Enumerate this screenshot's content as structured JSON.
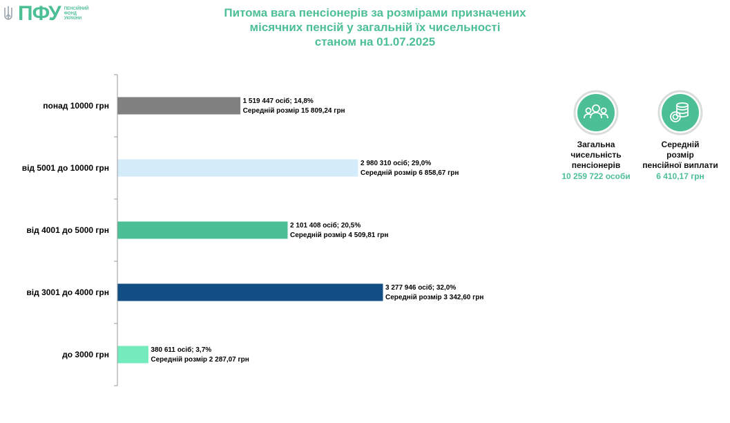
{
  "logo": {
    "letters": "ПФУ",
    "line1": "ПЕНСІЙНИЙ",
    "line2": "ФОНД",
    "line3": "УКРАЇНИ"
  },
  "colors": {
    "accent": "#4dbf95"
  },
  "chart_data": {
    "type": "bar",
    "orientation": "horizontal",
    "title": "Питома вага пенсіонерів за розмірами призначених місячних пенсій у загальній їх чисельності станом на 01.07.2025",
    "title_lines": [
      "Питома вага пенсіонерів за розмірами призначених",
      "місячних пенсій у загальній їх чисельності",
      "станом на 01.07.2025"
    ],
    "categories": [
      "понад 10000 грн",
      "від 5001 до 10000 грн",
      "від 4001 до 5000 грн",
      "від 3001 до 4000 грн",
      "до 3000 грн"
    ],
    "values": [
      14.8,
      29.0,
      20.5,
      32.0,
      3.7
    ],
    "counts": [
      "1 519 447",
      "2 980 310",
      "2 101 408",
      "3 277 946",
      "380 611"
    ],
    "averages": [
      "15 809,24",
      "6 858,67",
      "4 509,81",
      "3 342,60",
      "2 287,07"
    ],
    "bar_colors": [
      "#808080",
      "#d4ecfa",
      "#4dbf95",
      "#124d83",
      "#73ebbd"
    ],
    "labels_line1": [
      "1 519 447 осіб;  14,8%",
      "2 980 310 осіб; 29,0%",
      "2 101 408 осіб; 20,5%",
      "3 277 946 осіб; 32,0%",
      "380 611 осіб; 3,7%"
    ],
    "labels_line2": [
      "Середній розмір 15 809,24 грн",
      "Середній розмір 6 858,67 грн",
      "Середній розмір 4 509,81 грн",
      "Середній розмір 3 342,60 грн",
      "Середній розмір 2 287,07 грн"
    ],
    "xlim": [
      0,
      32
    ],
    "legend": "none",
    "grid": false
  },
  "info": {
    "total_label": "Загальна чисельність пенсіонерів",
    "total_line1": "Загальна",
    "total_line2": "чисельність",
    "total_line3": "пенсіонерів",
    "total_value": "10 259 722 особи",
    "total_icon": "people-icon",
    "avg_label": "Середній розмір пенсійної виплати",
    "avg_line1": "Середній",
    "avg_line2": "розмір",
    "avg_line3": "пенсійної виплати",
    "avg_value": "6 410,17 грн",
    "avg_icon": "coins-icon"
  }
}
